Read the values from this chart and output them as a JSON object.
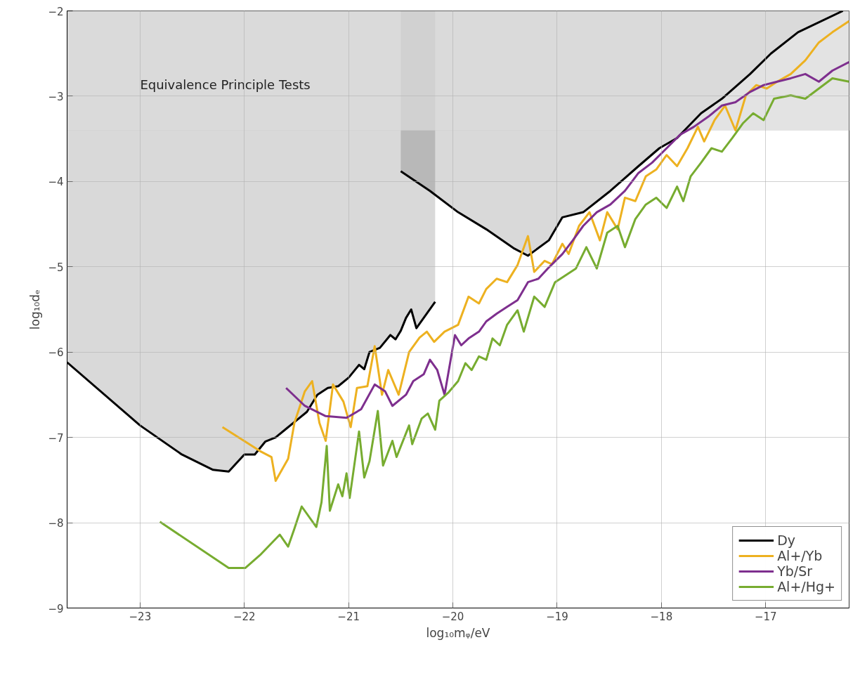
{
  "chart_data": {
    "type": "line",
    "xlabel": "log₁₀mᵩ/eV",
    "ylabel": "log₁₀dₑ",
    "xlim": [
      -23.7,
      -16.2
    ],
    "ylim": [
      -9,
      -2
    ],
    "xticks": [
      -23,
      -22,
      -21,
      -20,
      -19,
      -18,
      -17
    ],
    "yticks": [
      -9,
      -8,
      -7,
      -6,
      -5,
      -4,
      -3,
      -2
    ],
    "grid": true,
    "legend": "bottom right",
    "line_style": "solid",
    "bands": [
      {
        "axis": "y",
        "from": -3.4,
        "to": -2,
        "label": "Equivalence Principle Tests",
        "color": "#d9d9d9"
      }
    ],
    "series": [
      {
        "name": "Dy",
        "color": "#000000",
        "x": [
          -23.7,
          -23.0,
          -22.6,
          -22.3,
          -22.15,
          -22.0,
          -21.9,
          -21.8,
          -21.7,
          -21.6,
          -21.5,
          -21.4,
          -21.3,
          -21.2,
          -21.1,
          -21.0,
          -20.9,
          -20.85,
          -20.8,
          -20.7,
          -20.6,
          -20.55,
          -20.5,
          -20.45,
          -20.4,
          -20.35,
          -20.17
        ],
        "values": [
          -6.12,
          -6.86,
          -7.2,
          -7.38,
          -7.4,
          -7.2,
          -7.2,
          -7.05,
          -7.0,
          -6.9,
          -6.8,
          -6.7,
          -6.5,
          -6.42,
          -6.4,
          -6.3,
          -6.15,
          -6.2,
          -6.0,
          -5.95,
          -5.8,
          -5.85,
          -5.75,
          -5.6,
          -5.5,
          -5.72,
          -5.41
        ],
        "lower": [
          -6.12,
          -6.86,
          -7.2,
          -7.38,
          -7.4,
          -7.2,
          -7.2,
          -7.05,
          -7.0,
          -6.9,
          -6.8,
          -6.7,
          -6.5,
          -6.42,
          -6.4,
          -6.3,
          -6.15,
          -6.2,
          -6.0,
          -5.95,
          -5.8,
          -5.85,
          -5.75,
          -5.6,
          -5.5,
          -5.72,
          -5.41
        ],
        "upper": [
          -2,
          -2,
          -2,
          -2,
          -2,
          -2,
          -2,
          -2,
          -2,
          -2,
          -2,
          -2,
          -2,
          -2,
          -2,
          -2,
          -2,
          -2,
          -2,
          -2,
          -2,
          -2,
          -2,
          -2,
          -2,
          -2,
          -2
        ]
      },
      {
        "color": "#000000",
        "x": [
          -20.5,
          -20.22,
          -19.95,
          -19.68,
          -19.42,
          -19.28,
          -19.08,
          -18.95,
          -18.75,
          -18.49,
          -18.22,
          -18.02,
          -17.85,
          -17.62,
          -17.42,
          -17.15,
          -16.95,
          -16.69,
          -16.26
        ],
        "values": [
          -3.88,
          -4.11,
          -4.36,
          -4.56,
          -4.78,
          -4.87,
          -4.69,
          -4.42,
          -4.36,
          -4.11,
          -3.82,
          -3.61,
          -3.49,
          -3.2,
          -3.03,
          -2.74,
          -2.5,
          -2.25,
          -2.0
        ],
        "lower": [
          -3.88,
          -4.11,
          -4.36,
          -4.56,
          -4.78,
          -4.87,
          -4.69,
          -4.42,
          -4.36,
          -4.11,
          -3.82,
          -3.61,
          -3.49,
          -3.2,
          -3.03,
          -2.74,
          -2.5,
          -2.25,
          -2.0
        ],
        "upper": [
          -2,
          -2,
          -2,
          -2,
          -2,
          -2,
          -2,
          -2,
          -2,
          -2,
          -2,
          -2,
          -2,
          -2,
          -2,
          -2,
          -2,
          -2,
          -2
        ]
      },
      {
        "name": "Al+/Yb",
        "color": "#edb120",
        "x": [
          -22.21,
          -21.85,
          -21.74,
          -21.7,
          -21.58,
          -21.52,
          -21.42,
          -21.35,
          -21.28,
          -21.22,
          -21.18,
          -21.15,
          -21.05,
          -20.98,
          -20.92,
          -20.82,
          -20.75,
          -20.68,
          -20.62,
          -20.52,
          -20.42,
          -20.32,
          -20.25,
          -20.18,
          -20.08,
          -19.95,
          -19.85,
          -19.75,
          -19.68,
          -19.58,
          -19.48,
          -19.38,
          -19.28,
          -19.22,
          -19.12,
          -19.05,
          -18.95,
          -18.89,
          -18.79,
          -18.69,
          -18.59,
          -18.52,
          -18.42,
          -18.35,
          -18.25,
          -18.15,
          -18.05,
          -17.95,
          -17.85,
          -17.75,
          -17.65,
          -17.59,
          -17.49,
          -17.39,
          -17.29,
          -17.19,
          -17.09,
          -16.99,
          -16.89,
          -16.76,
          -16.62,
          -16.49,
          -16.36,
          -16.2
        ],
        "values": [
          -6.88,
          -7.16,
          -7.23,
          -7.51,
          -7.25,
          -6.83,
          -6.46,
          -6.34,
          -6.83,
          -7.04,
          -6.67,
          -6.38,
          -6.58,
          -6.88,
          -6.42,
          -6.4,
          -5.93,
          -6.5,
          -6.21,
          -6.5,
          -6.0,
          -5.83,
          -5.76,
          -5.88,
          -5.76,
          -5.68,
          -5.35,
          -5.43,
          -5.26,
          -5.14,
          -5.18,
          -4.98,
          -4.64,
          -5.06,
          -4.93,
          -4.97,
          -4.73,
          -4.85,
          -4.52,
          -4.36,
          -4.69,
          -4.36,
          -4.56,
          -4.19,
          -4.23,
          -3.94,
          -3.86,
          -3.69,
          -3.82,
          -3.61,
          -3.36,
          -3.53,
          -3.28,
          -3.11,
          -3.4,
          -2.99,
          -2.87,
          -2.91,
          -2.83,
          -2.74,
          -2.58,
          -2.37,
          -2.25,
          -2.12
        ]
      },
      {
        "name": "Yb/Sr",
        "color": "#7e2f8e",
        "x": [
          -21.6,
          -21.42,
          -21.22,
          -21.02,
          -20.88,
          -20.75,
          -20.65,
          -20.58,
          -20.45,
          -20.38,
          -20.28,
          -20.22,
          -20.15,
          -20.08,
          -19.98,
          -19.92,
          -19.85,
          -19.75,
          -19.68,
          -19.58,
          -19.48,
          -19.38,
          -19.28,
          -19.18,
          -19.09,
          -18.95,
          -18.85,
          -18.75,
          -18.62,
          -18.49,
          -18.35,
          -18.22,
          -18.09,
          -17.95,
          -17.82,
          -17.69,
          -17.55,
          -17.42,
          -17.29,
          -17.15,
          -17.02,
          -16.89,
          -16.76,
          -16.62,
          -16.49,
          -16.36,
          -16.2
        ],
        "values": [
          -6.42,
          -6.63,
          -6.75,
          -6.77,
          -6.67,
          -6.38,
          -6.46,
          -6.63,
          -6.5,
          -6.34,
          -6.26,
          -6.09,
          -6.21,
          -6.5,
          -5.8,
          -5.92,
          -5.84,
          -5.76,
          -5.64,
          -5.55,
          -5.47,
          -5.39,
          -5.18,
          -5.14,
          -5.02,
          -4.85,
          -4.69,
          -4.52,
          -4.36,
          -4.27,
          -4.11,
          -3.9,
          -3.78,
          -3.61,
          -3.45,
          -3.36,
          -3.24,
          -3.11,
          -3.07,
          -2.95,
          -2.87,
          -2.83,
          -2.79,
          -2.74,
          -2.83,
          -2.7,
          -2.6
        ]
      },
      {
        "name": "Al+/Hg+",
        "color": "#77ac30",
        "x": [
          -22.81,
          -22.15,
          -21.99,
          -21.85,
          -21.66,
          -21.58,
          -21.52,
          -21.45,
          -21.31,
          -21.26,
          -21.21,
          -21.18,
          -21.1,
          -21.06,
          -21.02,
          -20.99,
          -20.9,
          -20.85,
          -20.8,
          -20.72,
          -20.67,
          -20.58,
          -20.54,
          -20.42,
          -20.39,
          -20.3,
          -20.24,
          -20.17,
          -20.13,
          -20.04,
          -19.95,
          -19.88,
          -19.82,
          -19.75,
          -19.68,
          -19.62,
          -19.55,
          -19.48,
          -19.38,
          -19.32,
          -19.22,
          -19.12,
          -19.02,
          -18.92,
          -18.82,
          -18.72,
          -18.62,
          -18.52,
          -18.42,
          -18.35,
          -18.25,
          -18.15,
          -18.05,
          -17.95,
          -17.85,
          -17.79,
          -17.72,
          -17.62,
          -17.52,
          -17.42,
          -17.32,
          -17.22,
          -17.12,
          -17.02,
          -16.92,
          -16.76,
          -16.62,
          -16.49,
          -16.36,
          -16.2
        ],
        "values": [
          -7.99,
          -8.53,
          -8.53,
          -8.38,
          -8.14,
          -8.28,
          -8.07,
          -7.81,
          -8.05,
          -7.76,
          -7.1,
          -7.86,
          -7.55,
          -7.69,
          -7.42,
          -7.71,
          -6.93,
          -7.47,
          -7.28,
          -6.69,
          -7.33,
          -7.04,
          -7.23,
          -6.86,
          -7.08,
          -6.78,
          -6.72,
          -6.91,
          -6.57,
          -6.47,
          -6.34,
          -6.13,
          -6.21,
          -6.05,
          -6.09,
          -5.84,
          -5.92,
          -5.68,
          -5.51,
          -5.76,
          -5.35,
          -5.47,
          -5.18,
          -5.1,
          -5.02,
          -4.77,
          -5.02,
          -4.6,
          -4.52,
          -4.77,
          -4.44,
          -4.27,
          -4.19,
          -4.31,
          -4.06,
          -4.23,
          -3.94,
          -3.78,
          -3.61,
          -3.65,
          -3.49,
          -3.32,
          -3.2,
          -3.28,
          -3.03,
          -2.99,
          -3.03,
          -2.91,
          -2.79,
          -2.83
        ]
      }
    ]
  }
}
